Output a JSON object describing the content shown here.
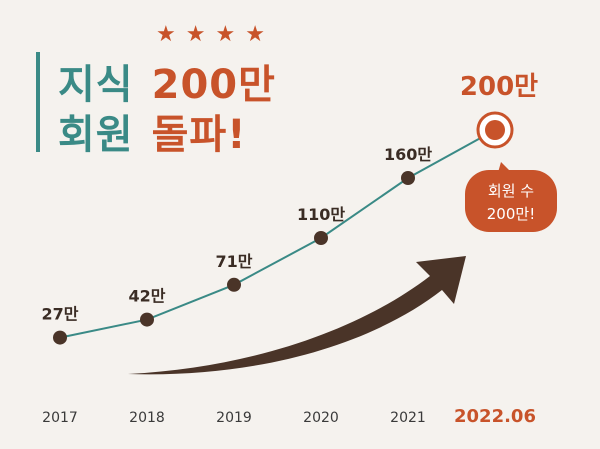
{
  "headline": {
    "line1": {
      "left": "지식",
      "right": "200만"
    },
    "line2": {
      "left": "회원",
      "right": "돌파!"
    },
    "star_count": 4
  },
  "callout": {
    "line1": "회원 수",
    "line2": "200만!"
  },
  "colors": {
    "teal": "#3a8a86",
    "orange": "#c8532a",
    "dark_brown": "#4a3428",
    "background": "#f5f2ee"
  },
  "chart_data": {
    "type": "line",
    "categories": [
      "2017",
      "2018",
      "2019",
      "2020",
      "2021",
      "2022.06"
    ],
    "values": [
      27,
      42,
      71,
      110,
      160,
      200
    ],
    "data_labels": [
      "27만",
      "42만",
      "71만",
      "110만",
      "160만",
      "200만"
    ],
    "title": "",
    "xlabel": "",
    "ylabel": "",
    "ylim": [
      0,
      220
    ],
    "grid": false,
    "highlight_last": true
  }
}
